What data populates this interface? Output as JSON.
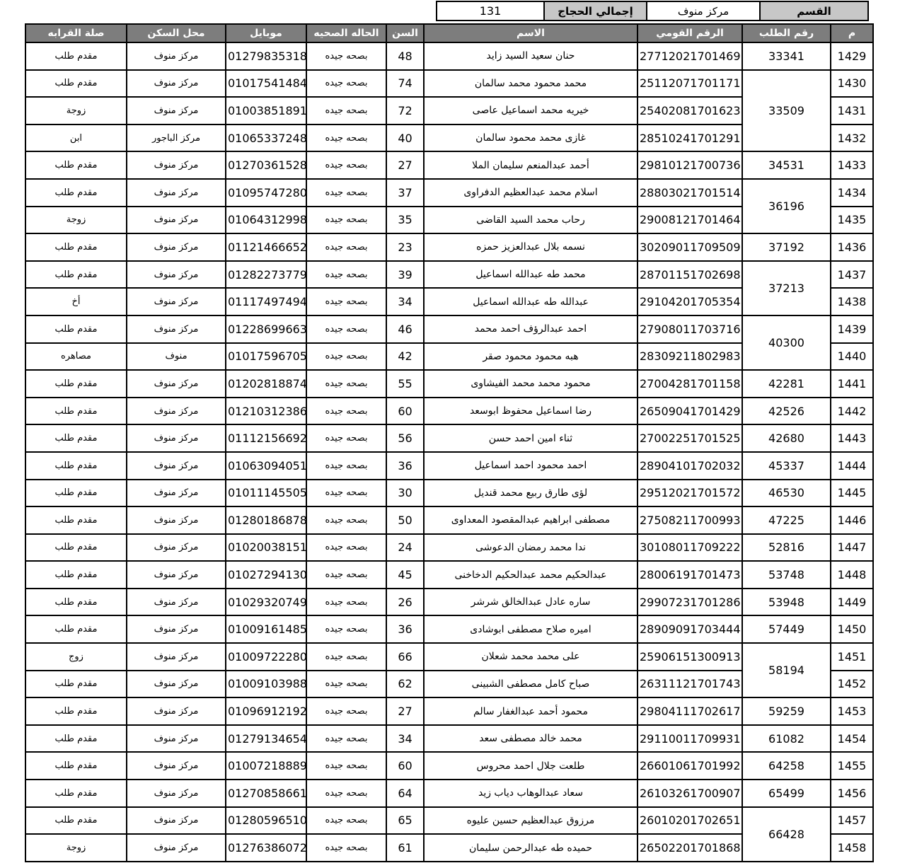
{
  "top_bar": {
    "total_value": "131",
    "total_label": "إجمالي الحجاج",
    "district_value": "مركز منوف",
    "district_label": "القسم"
  },
  "table": {
    "headers": {
      "serial": "م",
      "request_no": "رقم الطلب",
      "national_id": "الرقم القومي",
      "name": "الاسم",
      "age": "السن",
      "health": "الحاله الصحيه",
      "mobile": "موبايل",
      "residence": "محل السكن",
      "relation": "صلة القرابه"
    },
    "rows": [
      {
        "serial": "1429",
        "request_no": "33341",
        "request_rowspan": 1,
        "national_id": "27712021701469",
        "name": "حنان سعيد السيد زايد",
        "age": "48",
        "health": "بصحه جيده",
        "mobile": "01279835318",
        "residence": "مركز منوف",
        "relation": "مقدم طلب"
      },
      {
        "serial": "1430",
        "request_no": "33509",
        "request_rowspan": 3,
        "national_id": "25112071701171",
        "name": "محمد محمود محمد سالمان",
        "age": "74",
        "health": "بصحه جيده",
        "mobile": "01017541484",
        "residence": "مركز منوف",
        "relation": "مقدم طلب"
      },
      {
        "serial": "1431",
        "request_no": null,
        "national_id": "25402081701623",
        "name": "خيريه محمد اسماعيل عاصى",
        "age": "72",
        "health": "بصحه جيده",
        "mobile": "01003851891",
        "residence": "مركز منوف",
        "relation": "زوجة"
      },
      {
        "serial": "1432",
        "request_no": null,
        "national_id": "28510241701291",
        "name": "غازى محمد محمود سالمان",
        "age": "40",
        "health": "بصحه جيده",
        "mobile": "01065337248",
        "residence": "مركز الباجور",
        "relation": "ابن"
      },
      {
        "serial": "1433",
        "request_no": "34531",
        "request_rowspan": 1,
        "national_id": "29810121700736",
        "name": "أحمد عبدالمنعم سليمان الملا",
        "age": "27",
        "health": "بصحه جيده",
        "mobile": "01270361528",
        "residence": "مركز منوف",
        "relation": "مقدم طلب"
      },
      {
        "serial": "1434",
        "request_no": "36196",
        "request_rowspan": 2,
        "national_id": "28803021701514",
        "name": "اسلام محمد عبدالعظيم الدفراوى",
        "age": "37",
        "health": "بصحه جيده",
        "mobile": "01095747280",
        "residence": "مركز منوف",
        "relation": "مقدم طلب"
      },
      {
        "serial": "1435",
        "request_no": null,
        "national_id": "29008121701464",
        "name": "رحاب محمد السيد القاضى",
        "age": "35",
        "health": "بصحه جيده",
        "mobile": "01064312998",
        "residence": "مركز منوف",
        "relation": "زوجة"
      },
      {
        "serial": "1436",
        "request_no": "37192",
        "request_rowspan": 1,
        "national_id": "30209011709509",
        "name": "نسمه بلال عبدالعزيز حمزه",
        "age": "23",
        "health": "بصحه جيده",
        "mobile": "01121466652",
        "residence": "مركز منوف",
        "relation": "مقدم طلب"
      },
      {
        "serial": "1437",
        "request_no": "37213",
        "request_rowspan": 2,
        "national_id": "28701151702698",
        "name": "محمد طه عبدالله اسماعيل",
        "age": "39",
        "health": "بصحه جيده",
        "mobile": "01282273779",
        "residence": "مركز منوف",
        "relation": "مقدم طلب"
      },
      {
        "serial": "1438",
        "request_no": null,
        "national_id": "29104201705354",
        "name": "عبدالله طه عبدالله اسماعيل",
        "age": "34",
        "health": "بصحه جيده",
        "mobile": "01117497494",
        "residence": "مركز منوف",
        "relation": "أخ"
      },
      {
        "serial": "1439",
        "request_no": "40300",
        "request_rowspan": 2,
        "national_id": "27908011703716",
        "name": "احمد عبدالرؤف احمد محمد",
        "age": "46",
        "health": "بصحه جيده",
        "mobile": "01228699663",
        "residence": "مركز منوف",
        "relation": "مقدم طلب"
      },
      {
        "serial": "1440",
        "request_no": null,
        "national_id": "28309211802983",
        "name": "هبه محمود محمود صقر",
        "age": "42",
        "health": "بصحه جيده",
        "mobile": "01017596705",
        "residence": "منوف",
        "relation": "مصاهره"
      },
      {
        "serial": "1441",
        "request_no": "42281",
        "request_rowspan": 1,
        "national_id": "27004281701158",
        "name": "محمود محمد محمد الفيشاوى",
        "age": "55",
        "health": "بصحه جيده",
        "mobile": "01202818874",
        "residence": "مركز منوف",
        "relation": "مقدم طلب"
      },
      {
        "serial": "1442",
        "request_no": "42526",
        "request_rowspan": 1,
        "national_id": "26509041701429",
        "name": "رضا اسماعيل محفوظ ابوسعد",
        "age": "60",
        "health": "بصحه جيده",
        "mobile": "01210312386",
        "residence": "مركز منوف",
        "relation": "مقدم طلب"
      },
      {
        "serial": "1443",
        "request_no": "42680",
        "request_rowspan": 1,
        "national_id": "27002251701525",
        "name": "ثناء امين احمد حسن",
        "age": "56",
        "health": "بصحه جيده",
        "mobile": "01112156692",
        "residence": "مركز منوف",
        "relation": "مقدم طلب"
      },
      {
        "serial": "1444",
        "request_no": "45337",
        "request_rowspan": 1,
        "national_id": "28904101702032",
        "name": "احمد محمود احمد اسماعيل",
        "age": "36",
        "health": "بصحه جيده",
        "mobile": "01063094051",
        "residence": "مركز منوف",
        "relation": "مقدم طلب"
      },
      {
        "serial": "1445",
        "request_no": "46530",
        "request_rowspan": 1,
        "national_id": "29512021701572",
        "name": "لؤى طارق ربيع محمد قنديل",
        "age": "30",
        "health": "بصحه جيده",
        "mobile": "01011145505",
        "residence": "مركز منوف",
        "relation": "مقدم طلب"
      },
      {
        "serial": "1446",
        "request_no": "47225",
        "request_rowspan": 1,
        "national_id": "27508211700993",
        "name": "مصطفى ابراهيم عبدالمقصود المعداوى",
        "age": "50",
        "health": "بصحه جيده",
        "mobile": "01280186878",
        "residence": "مركز منوف",
        "relation": "مقدم طلب"
      },
      {
        "serial": "1447",
        "request_no": "52816",
        "request_rowspan": 1,
        "national_id": "30108011709222",
        "name": "ندا محمد رمضان الدعوشى",
        "age": "24",
        "health": "بصحه جيده",
        "mobile": "01020038151",
        "residence": "مركز منوف",
        "relation": "مقدم طلب"
      },
      {
        "serial": "1448",
        "request_no": "53748",
        "request_rowspan": 1,
        "national_id": "28006191701473",
        "name": "عبدالحكيم محمد عبدالحكيم الدخاخنى",
        "age": "45",
        "health": "بصحه جيده",
        "mobile": "01027294130",
        "residence": "مركز منوف",
        "relation": "مقدم طلب"
      },
      {
        "serial": "1449",
        "request_no": "53948",
        "request_rowspan": 1,
        "national_id": "29907231701286",
        "name": "ساره عادل عبدالخالق شرشر",
        "age": "26",
        "health": "بصحه جيده",
        "mobile": "01029320749",
        "residence": "مركز منوف",
        "relation": "مقدم طلب"
      },
      {
        "serial": "1450",
        "request_no": "57449",
        "request_rowspan": 1,
        "national_id": "28909091703444",
        "name": "اميره صلاح مصطفى ابوشادى",
        "age": "36",
        "health": "بصحه جيده",
        "mobile": "01009161485",
        "residence": "مركز منوف",
        "relation": "مقدم طلب"
      },
      {
        "serial": "1451",
        "request_no": "58194",
        "request_rowspan": 2,
        "national_id": "25906151300913",
        "name": "على محمد محمد شعلان",
        "age": "66",
        "health": "بصحه جيده",
        "mobile": "01009722280",
        "residence": "مركز منوف",
        "relation": "زوج"
      },
      {
        "serial": "1452",
        "request_no": null,
        "national_id": "26311121701743",
        "name": "صباح كامل مصطفى الشبينى",
        "age": "62",
        "health": "بصحه جيده",
        "mobile": "01009103988",
        "residence": "مركز منوف",
        "relation": "مقدم طلب"
      },
      {
        "serial": "1453",
        "request_no": "59259",
        "request_rowspan": 1,
        "national_id": "29804111702617",
        "name": "محمود أحمد عبدالغفار سالم",
        "age": "27",
        "health": "بصحه جيده",
        "mobile": "01096912192",
        "residence": "مركز منوف",
        "relation": "مقدم طلب"
      },
      {
        "serial": "1454",
        "request_no": "61082",
        "request_rowspan": 1,
        "national_id": "29110011709931",
        "name": "محمد خالد مصطفى سعد",
        "age": "34",
        "health": "بصحه جيده",
        "mobile": "01279134654",
        "residence": "مركز منوف",
        "relation": "مقدم طلب"
      },
      {
        "serial": "1455",
        "request_no": "64258",
        "request_rowspan": 1,
        "national_id": "26601061701992",
        "name": "طلعت جلال احمد محروس",
        "age": "60",
        "health": "بصحه جيده",
        "mobile": "01007218889",
        "residence": "مركز منوف",
        "relation": "مقدم طلب"
      },
      {
        "serial": "1456",
        "request_no": "65499",
        "request_rowspan": 1,
        "national_id": "26103261700907",
        "name": "سعاد عبدالوهاب دياب زيد",
        "age": "64",
        "health": "بصحه جيده",
        "mobile": "01270858661",
        "residence": "مركز منوف",
        "relation": "مقدم طلب"
      },
      {
        "serial": "1457",
        "request_no": "66428",
        "request_rowspan": 2,
        "national_id": "26010201702651",
        "name": "مرزوق عبدالعظيم حسين عليوه",
        "age": "65",
        "health": "بصحه جيده",
        "mobile": "01280596510",
        "residence": "مركز منوف",
        "relation": "مقدم طلب"
      },
      {
        "serial": "1458",
        "request_no": null,
        "national_id": "26502201701868",
        "name": "حميده طه عبدالرحمن سليمان",
        "age": "61",
        "health": "بصحه جيده",
        "mobile": "01276386072",
        "residence": "مركز منوف",
        "relation": "زوجة"
      }
    ]
  },
  "colors": {
    "header_bg": "#7d7d7d",
    "header_text": "#ffffff",
    "summary_label_bg": "#c7c7c7",
    "border": "#000000",
    "cell_bg": "#ffffff"
  }
}
